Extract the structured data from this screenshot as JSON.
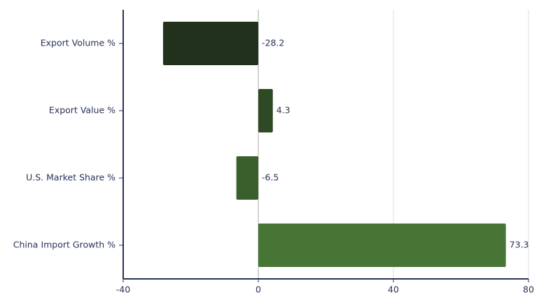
{
  "chart_data": {
    "type": "hbar",
    "categories": [
      "Export Volume %",
      "Export Value %",
      "U.S. Market Share %",
      "China Import Growth %"
    ],
    "values": [
      -28.2,
      4.3,
      -6.5,
      73.3
    ],
    "colors": [
      "#22311c",
      "#2e4a24",
      "#3b5e2d",
      "#467536"
    ],
    "xlim": [
      -40,
      80
    ],
    "xticks": [
      -40,
      0,
      40,
      80
    ],
    "grid": true
  }
}
